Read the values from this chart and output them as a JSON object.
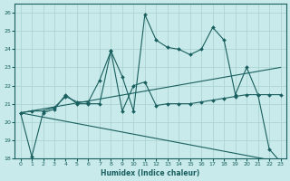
{
  "xlabel": "Humidex (Indice chaleur)",
  "xlim": [
    -0.5,
    23.5
  ],
  "ylim": [
    18,
    26.5
  ],
  "yticks": [
    18,
    19,
    20,
    21,
    22,
    23,
    24,
    25,
    26
  ],
  "xticks": [
    0,
    1,
    2,
    3,
    4,
    5,
    6,
    7,
    8,
    9,
    10,
    11,
    12,
    13,
    14,
    15,
    16,
    17,
    18,
    19,
    20,
    21,
    22,
    23
  ],
  "background_color": "#c8eaea",
  "grid_color": "#a8d0d0",
  "line_color": "#1a5f5f",
  "series": [
    {
      "x": [
        0,
        1,
        2,
        3,
        4,
        5,
        6,
        7,
        8,
        9,
        10,
        11,
        12,
        13,
        14,
        15,
        16,
        17,
        18,
        19,
        20,
        21,
        22,
        23
      ],
      "y": [
        20.5,
        18.1,
        20.5,
        20.7,
        21.5,
        21.0,
        21.0,
        21.0,
        23.9,
        22.5,
        20.6,
        25.9,
        24.5,
        24.1,
        24.0,
        23.7,
        24.0,
        25.2,
        24.5,
        21.5,
        23.0,
        21.5,
        18.5,
        17.8
      ],
      "marker": "D",
      "markersize": 2.0,
      "linewidth": 0.8
    },
    {
      "x": [
        0,
        1,
        2,
        3,
        4,
        5,
        6,
        7,
        8,
        9,
        10,
        11,
        12,
        13,
        14,
        15,
        16,
        17,
        18,
        19,
        20,
        21,
        22,
        23
      ],
      "y": [
        20.5,
        20.6,
        20.6,
        20.8,
        21.4,
        21.1,
        21.1,
        22.3,
        23.9,
        20.6,
        22.0,
        22.2,
        20.9,
        21.0,
        21.0,
        21.0,
        21.1,
        21.2,
        21.3,
        21.4,
        21.5,
        21.5,
        21.5,
        21.5
      ],
      "marker": "D",
      "markersize": 2.0,
      "linewidth": 0.8
    },
    {
      "x": [
        0,
        23
      ],
      "y": [
        20.5,
        17.8
      ],
      "marker": null,
      "markersize": 0,
      "linewidth": 0.8
    },
    {
      "x": [
        0,
        23
      ],
      "y": [
        20.5,
        23.0
      ],
      "marker": null,
      "markersize": 0,
      "linewidth": 0.8
    }
  ]
}
